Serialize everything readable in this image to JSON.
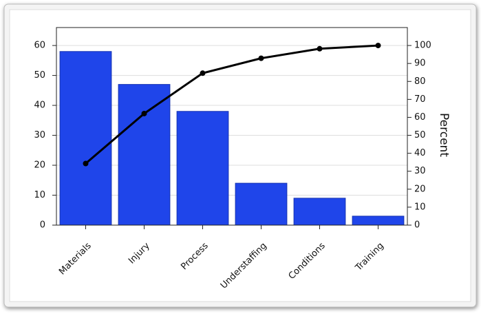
{
  "chart_data": {
    "type": "pareto",
    "y2label": "Percent",
    "categories": [
      "Materials",
      "Injury",
      "Process",
      "Understaffing",
      "Conditions",
      "Training"
    ],
    "series": [
      {
        "type": "bar",
        "color": "#1f45ea",
        "values": [
          58,
          47,
          38,
          14,
          9,
          3
        ]
      },
      {
        "type": "line",
        "color": "#000000",
        "axis": "y2",
        "values": [
          34.3,
          62.1,
          84.6,
          92.9,
          98.2,
          100
        ]
      }
    ],
    "ylim": [
      0,
      66
    ],
    "yticks": [
      0,
      10,
      20,
      30,
      40,
      50,
      60
    ],
    "y2lim": [
      0,
      110
    ],
    "y2ticks": [
      0,
      10,
      20,
      30,
      40,
      50,
      60,
      70,
      80,
      90,
      100
    ],
    "grid": true
  }
}
